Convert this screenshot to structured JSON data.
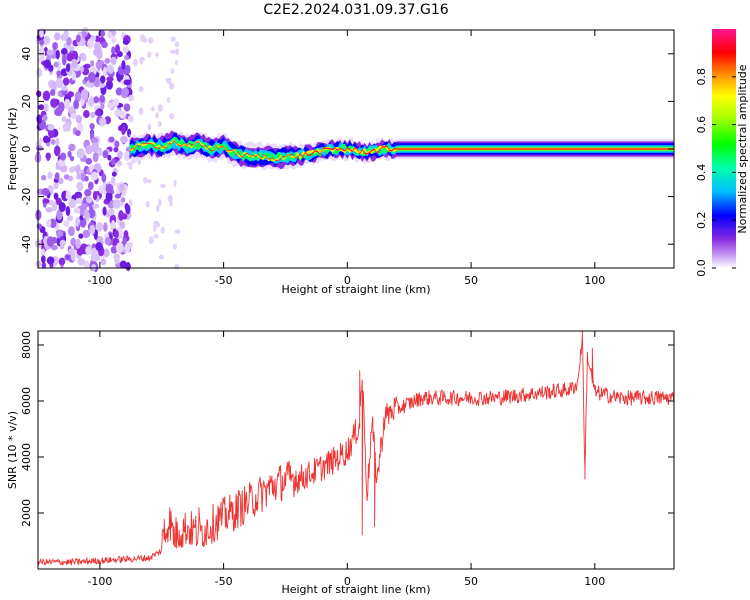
{
  "title": "C2E2.2024.031.09.37.G16",
  "chart_data": [
    {
      "type": "heatmap",
      "title": "C2E2.2024.031.09.37.G16",
      "xlabel": "Height of straight line (km)",
      "ylabel": "Frequency (Hz)",
      "xlim": [
        -125,
        132
      ],
      "ylim": [
        -50,
        50
      ],
      "x_ticks": [
        -100,
        -50,
        0,
        50,
        100
      ],
      "y_ticks": [
        -40,
        -20,
        0,
        20,
        40
      ],
      "grid": false,
      "colorbar": {
        "label": "Normalized spectral amplitude",
        "ticks": [
          "0.0",
          "0.2",
          "0.4",
          "0.6",
          "0.8"
        ],
        "range": [
          0,
          1
        ],
        "colors": [
          "#ffffff",
          "#8a2be2",
          "#0000ff",
          "#00ffff",
          "#00ff00",
          "#ffff00",
          "#ff8000",
          "#ff0000",
          "#ff1493"
        ]
      },
      "noise_region_x": [
        -125,
        -88
      ],
      "frequency_trace": {
        "x": [
          -88,
          -80,
          -75,
          -70,
          -65,
          -60,
          -55,
          -50,
          -45,
          -40,
          -35,
          -30,
          -25,
          -20,
          -15,
          -10,
          -5,
          0,
          5,
          10,
          15,
          20,
          30,
          40,
          50,
          60,
          70,
          80,
          90,
          95,
          100,
          110,
          120,
          132
        ],
        "y": [
          0,
          2,
          1,
          3,
          1,
          2,
          0,
          1,
          -2,
          -3,
          -3,
          -4,
          -3,
          -3,
          -2,
          -1,
          0,
          0,
          -1,
          -1,
          0,
          0,
          0,
          0,
          0,
          0,
          0,
          0,
          0,
          0,
          0,
          0,
          0,
          0
        ]
      }
    },
    {
      "type": "line",
      "xlabel": "Height of straight line (km)",
      "ylabel": "SNR (10 * v/v)",
      "xlim": [
        -125,
        132
      ],
      "ylim": [
        0,
        8500
      ],
      "x_ticks": [
        -100,
        -50,
        0,
        50,
        100
      ],
      "y_ticks": [
        2000,
        4000,
        6000,
        8000
      ],
      "grid": false,
      "color": "#ee3333",
      "x": [
        -125,
        -110,
        -100,
        -90,
        -80,
        -75,
        -72,
        -70,
        -65,
        -60,
        -55,
        -50,
        -45,
        -40,
        -35,
        -30,
        -25,
        -20,
        -15,
        -10,
        -5,
        -2,
        0,
        2,
        5,
        6,
        8,
        10,
        12,
        15,
        20,
        25,
        30,
        40,
        50,
        60,
        70,
        80,
        90,
        93,
        95,
        96,
        97,
        100,
        110,
        120,
        132
      ],
      "values": [
        200,
        200,
        250,
        300,
        350,
        600,
        1500,
        900,
        1200,
        1000,
        1300,
        1600,
        1800,
        2100,
        2400,
        2700,
        2900,
        3000,
        3200,
        3450,
        3700,
        3900,
        4000,
        4400,
        5000,
        6800,
        2500,
        5000,
        3000,
        5200,
        5600,
        5800,
        6000,
        6000,
        6000,
        6000,
        6100,
        6200,
        6300,
        6500,
        8200,
        3300,
        7500,
        6200,
        6000,
        6000,
        6000
      ],
      "spikes": [
        {
          "x": -74,
          "y": 1800
        },
        {
          "x": -68,
          "y": 1400
        },
        {
          "x": -60,
          "y": 2200
        },
        {
          "x": -52,
          "y": 2100
        },
        {
          "x": -44,
          "y": 2800
        },
        {
          "x": 5,
          "y": 7100
        },
        {
          "x": 6,
          "y": 1200
        },
        {
          "x": 11,
          "y": 1500
        },
        {
          "x": 95,
          "y": 8400
        },
        {
          "x": 96,
          "y": 3200
        },
        {
          "x": 99,
          "y": 7900
        }
      ]
    }
  ]
}
